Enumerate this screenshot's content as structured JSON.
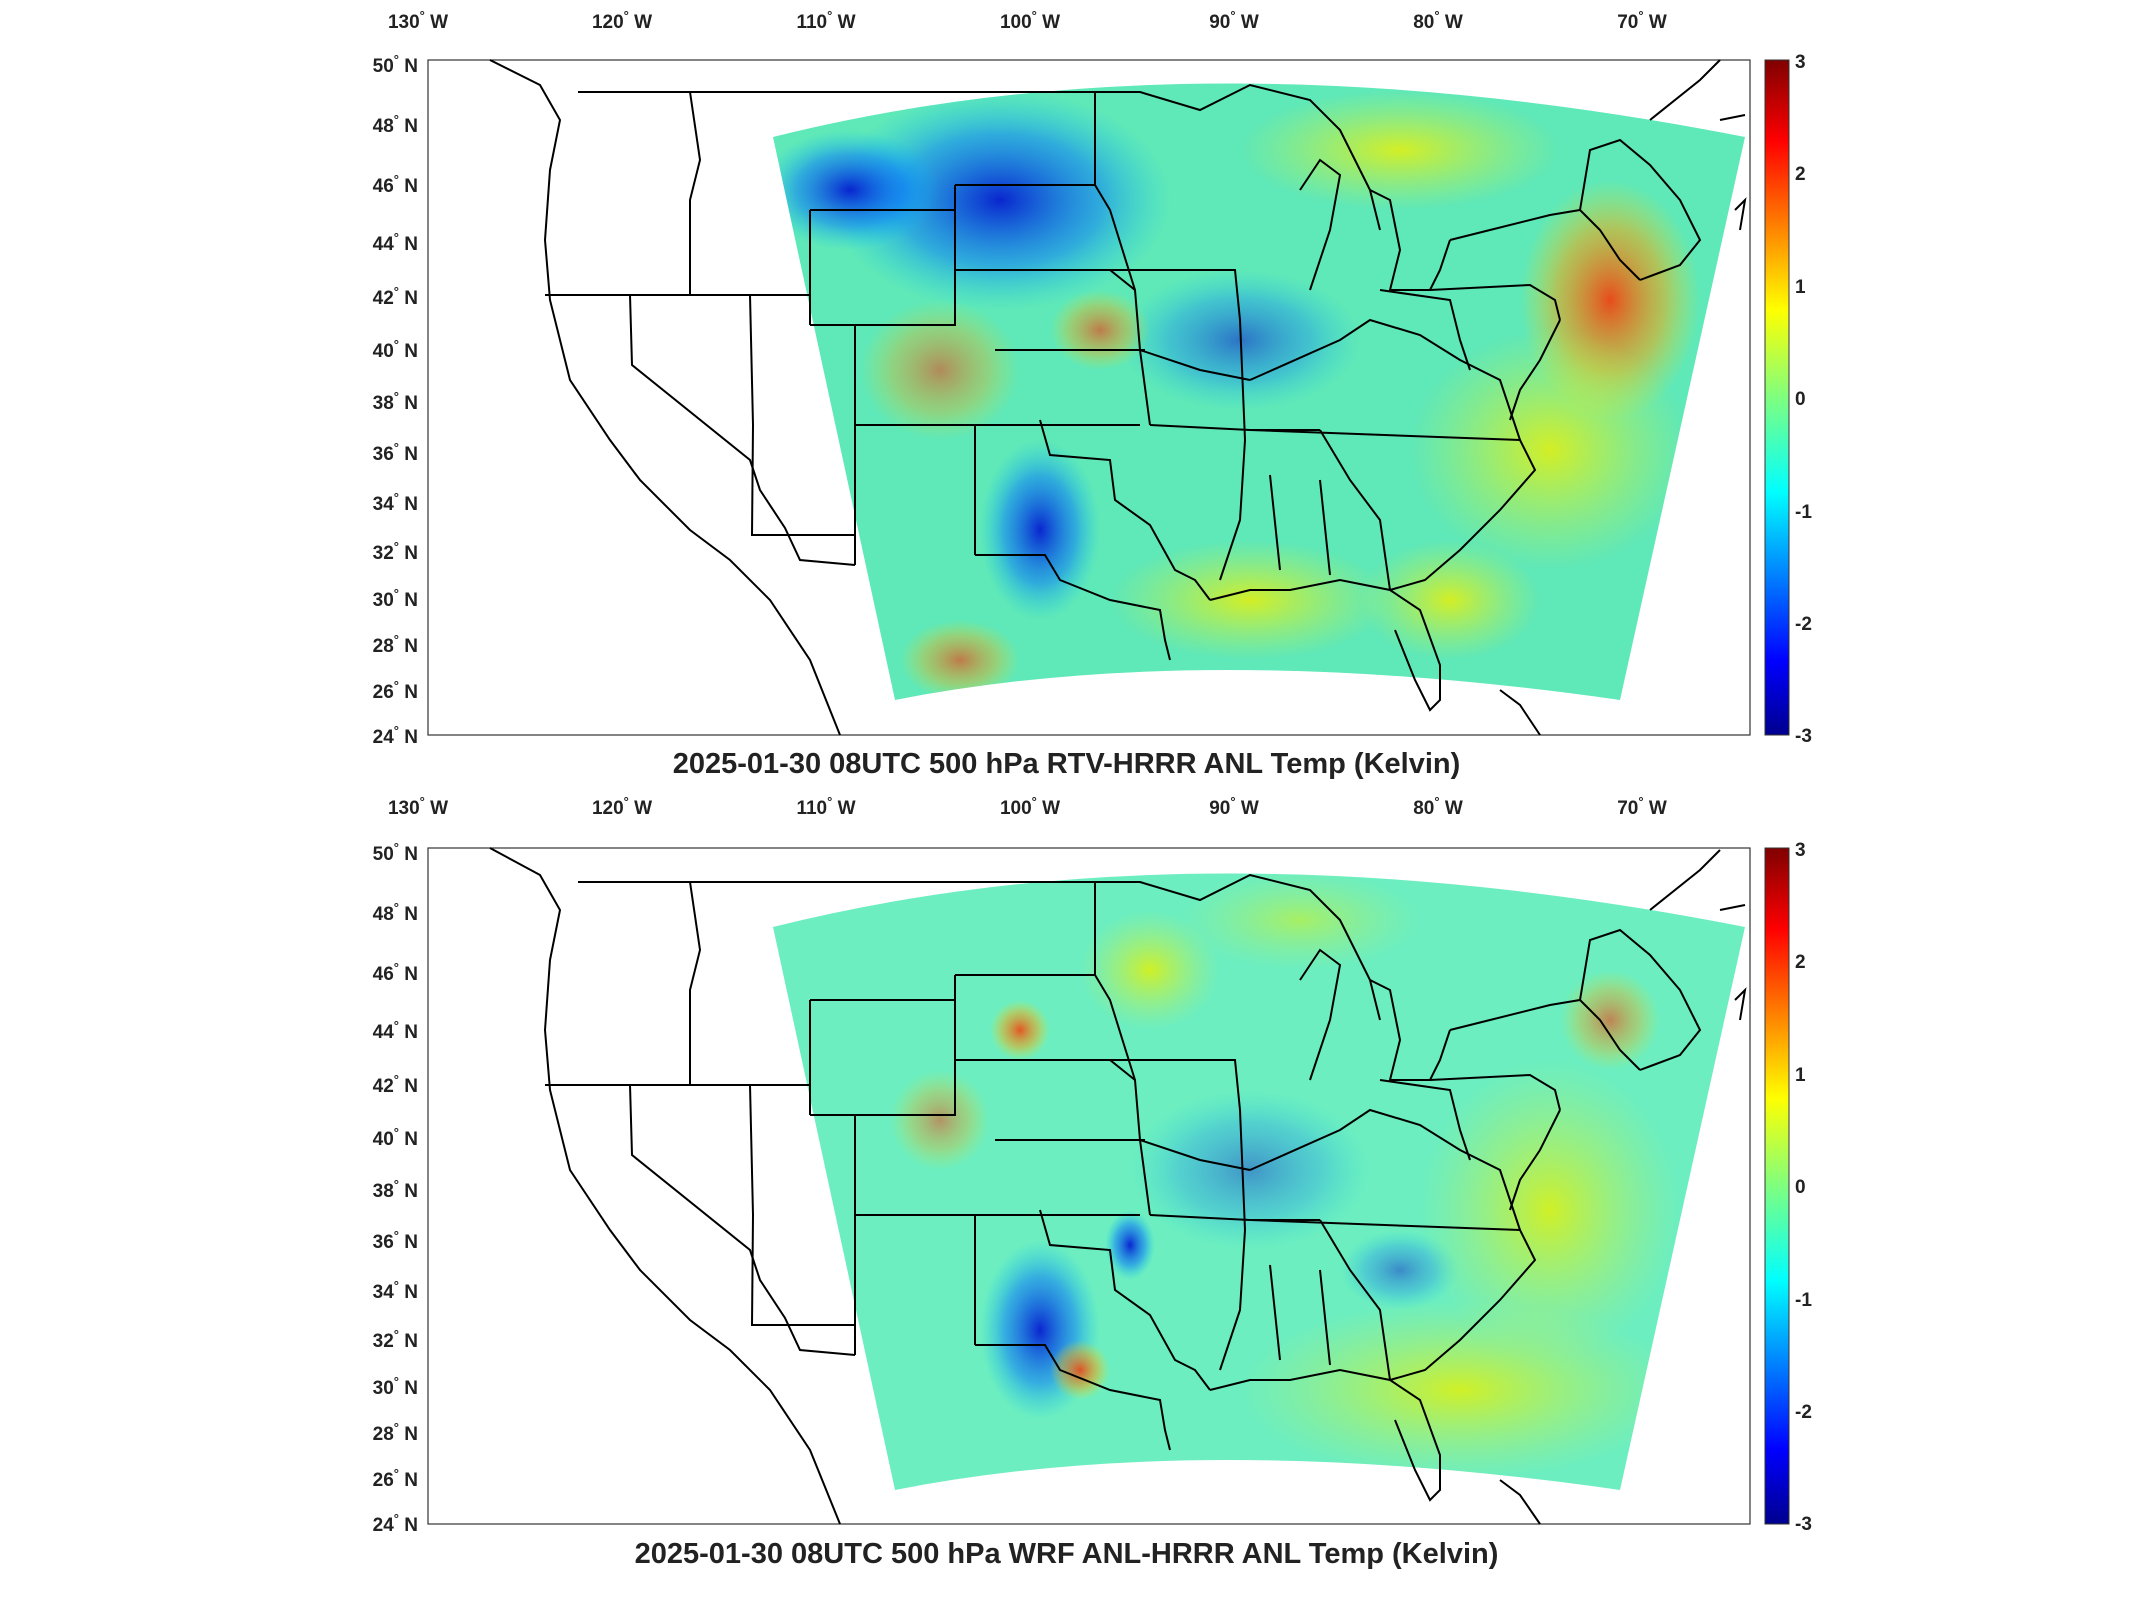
{
  "lon_labels": [
    "130",
    "120",
    "110",
    "100",
    "90",
    "80",
    "70"
  ],
  "lon_suffix": "W",
  "lat_labels": [
    "50",
    "48",
    "46",
    "44",
    "42",
    "40",
    "38",
    "36",
    "34",
    "32",
    "30",
    "28",
    "26",
    "24"
  ],
  "lat_suffix": "N",
  "degree_symbol": "°",
  "colorbar": {
    "ticks": [
      "3",
      "2",
      "1",
      "0",
      "-1",
      "-2",
      "-3"
    ],
    "range": [
      -3,
      3
    ],
    "colormap": "jet"
  },
  "panels": [
    {
      "title": "2025-01-30 08UTC 500 hPa RTV-HRRR ANL Temp (Kelvin)"
    },
    {
      "title": "2025-01-30 08UTC 500 hPa WRF ANL-HRRR ANL Temp (Kelvin)"
    }
  ],
  "colors": {
    "jet_dark_blue": "#00008F",
    "jet_blue": "#0000FF",
    "jet_cyan": "#00FFFF",
    "jet_yellow": "#FFFF00",
    "jet_red": "#FF0000",
    "jet_dark_red": "#800000"
  }
}
